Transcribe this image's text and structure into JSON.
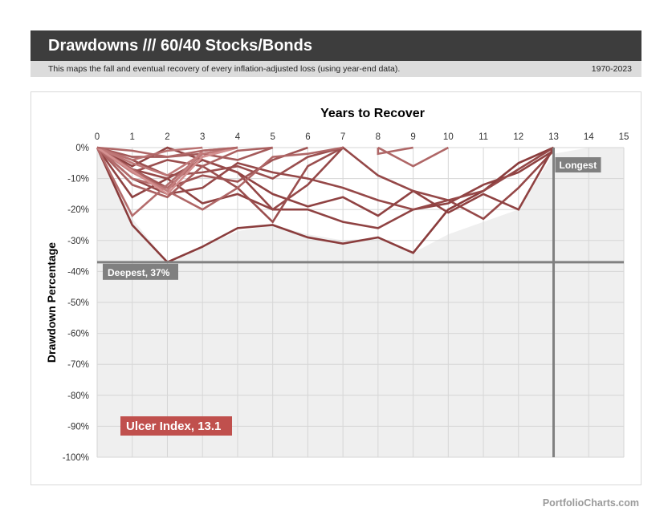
{
  "header": {
    "title": "Drawdowns /// 60/40 Stocks/Bonds",
    "description": "This maps the fall and eventual recovery of every inflation-adjusted loss (using year-end data).",
    "date_range": "1970-2023"
  },
  "footer": {
    "brand": "PortfolioCharts.com"
  },
  "colors": {
    "dark_line": "#7a2a2a",
    "light_line": "#e4a2a2",
    "ulcer_badge": "#c0504d",
    "marker_gray": "#808080",
    "fill": "#efefef"
  },
  "chart_data": {
    "type": "line",
    "title": "Years to Recover",
    "ylabel": "Drawdown Percentage",
    "xlim": [
      0,
      15
    ],
    "ylim": [
      -100,
      0
    ],
    "x_ticks": [
      "0",
      "1",
      "2",
      "3",
      "4",
      "5",
      "6",
      "7",
      "8",
      "9",
      "10",
      "11",
      "12",
      "13",
      "14",
      "15"
    ],
    "y_ticks": [
      "0%",
      "-10%",
      "-20%",
      "-30%",
      "-40%",
      "-50%",
      "-60%",
      "-70%",
      "-80%",
      "-90%",
      "-100%"
    ],
    "grid": true,
    "envelope": [
      [
        0,
        0
      ],
      [
        1,
        -23
      ],
      [
        2,
        -37
      ],
      [
        3,
        -32
      ],
      [
        4,
        -27
      ],
      [
        5,
        -25
      ],
      [
        6,
        -28
      ],
      [
        7,
        -30
      ],
      [
        8,
        -29
      ],
      [
        9,
        -34
      ],
      [
        10,
        -28
      ],
      [
        11,
        -24
      ],
      [
        12,
        -20
      ],
      [
        13,
        -2
      ],
      [
        14,
        0
      ]
    ],
    "series": [
      {
        "shade": 0.15,
        "points": [
          [
            0,
            0
          ],
          [
            1,
            -25
          ],
          [
            2,
            -37
          ],
          [
            3,
            -32
          ],
          [
            4,
            -26
          ],
          [
            5,
            -25
          ],
          [
            6,
            -29
          ],
          [
            7,
            -31
          ],
          [
            8,
            -29
          ],
          [
            9,
            -34
          ],
          [
            10,
            -20
          ],
          [
            11,
            -14
          ],
          [
            12,
            -5
          ],
          [
            13,
            0
          ]
        ]
      },
      {
        "shade": 0.2,
        "points": [
          [
            0,
            0
          ],
          [
            1,
            -16
          ],
          [
            2,
            -10
          ],
          [
            3,
            -18
          ],
          [
            4,
            -15
          ],
          [
            5,
            -20
          ],
          [
            6,
            -20
          ],
          [
            7,
            -24
          ],
          [
            8,
            -26
          ],
          [
            9,
            -20
          ],
          [
            10,
            -18
          ],
          [
            11,
            -12
          ],
          [
            12,
            -8
          ],
          [
            13,
            -1
          ]
        ]
      },
      {
        "shade": 0.25,
        "points": [
          [
            0,
            0
          ],
          [
            1,
            -10
          ],
          [
            2,
            -15
          ],
          [
            3,
            -13
          ],
          [
            4,
            -5
          ],
          [
            5,
            -8
          ],
          [
            6,
            -10
          ],
          [
            7,
            -13
          ],
          [
            8,
            -17
          ],
          [
            9,
            -20
          ],
          [
            10,
            -17
          ],
          [
            11,
            -23
          ],
          [
            12,
            -13
          ],
          [
            13,
            -1
          ]
        ]
      },
      {
        "shade": 0.2,
        "points": [
          [
            0,
            0
          ],
          [
            1,
            -6
          ],
          [
            2,
            0
          ],
          [
            3,
            -4
          ],
          [
            4,
            -8
          ],
          [
            5,
            -15
          ],
          [
            6,
            -19
          ],
          [
            7,
            -16
          ],
          [
            8,
            -22
          ],
          [
            9,
            -14
          ],
          [
            10,
            -21
          ],
          [
            11,
            -15
          ],
          [
            12,
            -20
          ],
          [
            13,
            0
          ]
        ]
      },
      {
        "shade": 0.25,
        "points": [
          [
            0,
            0
          ],
          [
            1,
            -7
          ],
          [
            2,
            -10
          ],
          [
            3,
            -4
          ],
          [
            4,
            -8
          ],
          [
            5,
            -20
          ],
          [
            6,
            -12
          ],
          [
            7,
            0
          ],
          [
            8,
            -9
          ],
          [
            9,
            -14
          ],
          [
            10,
            -17
          ],
          [
            11,
            -14
          ],
          [
            12,
            -7
          ],
          [
            13,
            0
          ]
        ]
      },
      {
        "shade": 0.3,
        "points": [
          [
            0,
            0
          ],
          [
            1,
            -8
          ],
          [
            2,
            -4
          ],
          [
            3,
            -6
          ],
          [
            4,
            -13
          ],
          [
            5,
            -24
          ],
          [
            6,
            -6
          ],
          [
            7,
            0
          ]
        ]
      },
      {
        "shade": 0.3,
        "points": [
          [
            0,
            0
          ],
          [
            1,
            -4
          ],
          [
            2,
            -9
          ],
          [
            3,
            -8
          ],
          [
            4,
            -6
          ],
          [
            5,
            -10
          ],
          [
            6,
            -3
          ],
          [
            7,
            0
          ]
        ]
      },
      {
        "shade": 0.35,
        "points": [
          [
            0,
            0
          ],
          [
            1,
            -7
          ],
          [
            2,
            -13
          ],
          [
            3,
            -9
          ],
          [
            4,
            -11
          ],
          [
            5,
            -4
          ],
          [
            6,
            0
          ]
        ]
      },
      {
        "shade": 0.4,
        "points": [
          [
            0,
            0
          ],
          [
            1,
            -3
          ],
          [
            2,
            -3
          ],
          [
            3,
            -2
          ],
          [
            4,
            -4
          ],
          [
            5,
            0
          ]
        ]
      },
      {
        "shade": 0.45,
        "points": [
          [
            0,
            0
          ],
          [
            1,
            -12
          ],
          [
            2,
            -16
          ],
          [
            3,
            -6
          ],
          [
            4,
            -1
          ],
          [
            5,
            0
          ]
        ]
      },
      {
        "shade": 0.5,
        "points": [
          [
            0,
            0
          ],
          [
            2,
            -14
          ],
          [
            3,
            -20
          ],
          [
            4,
            -13
          ],
          [
            5,
            -3
          ],
          [
            6,
            -2
          ],
          [
            7,
            0
          ]
        ]
      },
      {
        "shade": 0.55,
        "points": [
          [
            0,
            0
          ],
          [
            1,
            -10
          ],
          [
            2,
            -13
          ],
          [
            3,
            -3
          ],
          [
            4,
            0
          ]
        ]
      },
      {
        "shade": 0.6,
        "points": [
          [
            0,
            0
          ],
          [
            1,
            -4
          ],
          [
            2,
            -1
          ],
          [
            3,
            0
          ]
        ]
      },
      {
        "shade": 0.55,
        "points": [
          [
            0,
            0
          ],
          [
            1,
            -22
          ],
          [
            2,
            -12
          ],
          [
            3,
            -2
          ],
          [
            4,
            0
          ]
        ]
      },
      {
        "shade": 0.65,
        "points": [
          [
            0,
            0
          ],
          [
            1,
            -5
          ],
          [
            2,
            -9
          ],
          [
            3,
            -2
          ],
          [
            4,
            0
          ]
        ]
      },
      {
        "shade": 0.7,
        "points": [
          [
            0,
            0
          ],
          [
            1,
            -8
          ],
          [
            2,
            -14
          ],
          [
            3,
            -1
          ],
          [
            4,
            0
          ]
        ]
      },
      {
        "shade": 0.85,
        "points": [
          [
            0,
            0
          ],
          [
            2,
            -15
          ],
          [
            3,
            -3
          ],
          [
            4,
            0
          ]
        ]
      },
      {
        "shade": 0.5,
        "points": [
          [
            0,
            0
          ],
          [
            1,
            -1
          ],
          [
            2,
            -3
          ],
          [
            3,
            -1
          ],
          [
            4,
            0
          ]
        ]
      },
      {
        "shade": 0.5,
        "points": [
          [
            8,
            0
          ],
          [
            9,
            -6
          ],
          [
            10,
            0
          ]
        ]
      },
      {
        "shade": 0.5,
        "points": [
          [
            8,
            0
          ],
          [
            8,
            -2
          ],
          [
            9,
            0
          ]
        ]
      }
    ],
    "annotations": {
      "deepest": {
        "label": "Deepest, 37%",
        "value": -37
      },
      "longest": {
        "label": "Longest",
        "value": 13
      },
      "ulcer": {
        "label": "Ulcer Index, 13.1"
      }
    }
  }
}
